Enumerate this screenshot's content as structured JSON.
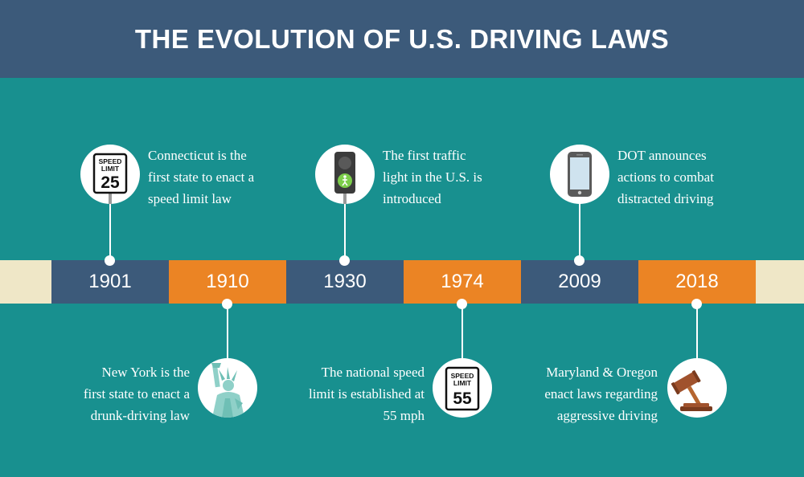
{
  "title": "THE EVOLUTION OF U.S. DRIVING LAWS",
  "colors": {
    "background": "#18908f",
    "header": "#3c5a7a",
    "segment_blue": "#3c5a7a",
    "segment_orange": "#eb8424",
    "band": "#efe7c7"
  },
  "timeline": [
    {
      "year": "1901",
      "text": "Connecticut is the\nfirst state to enact a\nspeed limit law",
      "icon": "speed-limit-25-sign-icon",
      "sign_top": "SPEED\nLIMIT",
      "sign_value": "25"
    },
    {
      "year": "1910",
      "text": "New York is the\nfirst state to enact a\ndrunk-driving law",
      "icon": "statue-of-liberty-icon"
    },
    {
      "year": "1930",
      "text": "The first traffic\nlight in the U.S. is\nintroduced",
      "icon": "traffic-light-icon"
    },
    {
      "year": "1974",
      "text": "The national speed\nlimit is established at\n55 mph",
      "icon": "speed-limit-55-sign-icon",
      "sign_top": "SPEED\nLIMIT",
      "sign_value": "55"
    },
    {
      "year": "2009",
      "text": "DOT announces\nactions to combat\ndistracted driving",
      "icon": "smartphone-icon"
    },
    {
      "year": "2018",
      "text": "Maryland & Oregon\nenact laws regarding\naggressive driving",
      "icon": "gavel-icon"
    }
  ]
}
